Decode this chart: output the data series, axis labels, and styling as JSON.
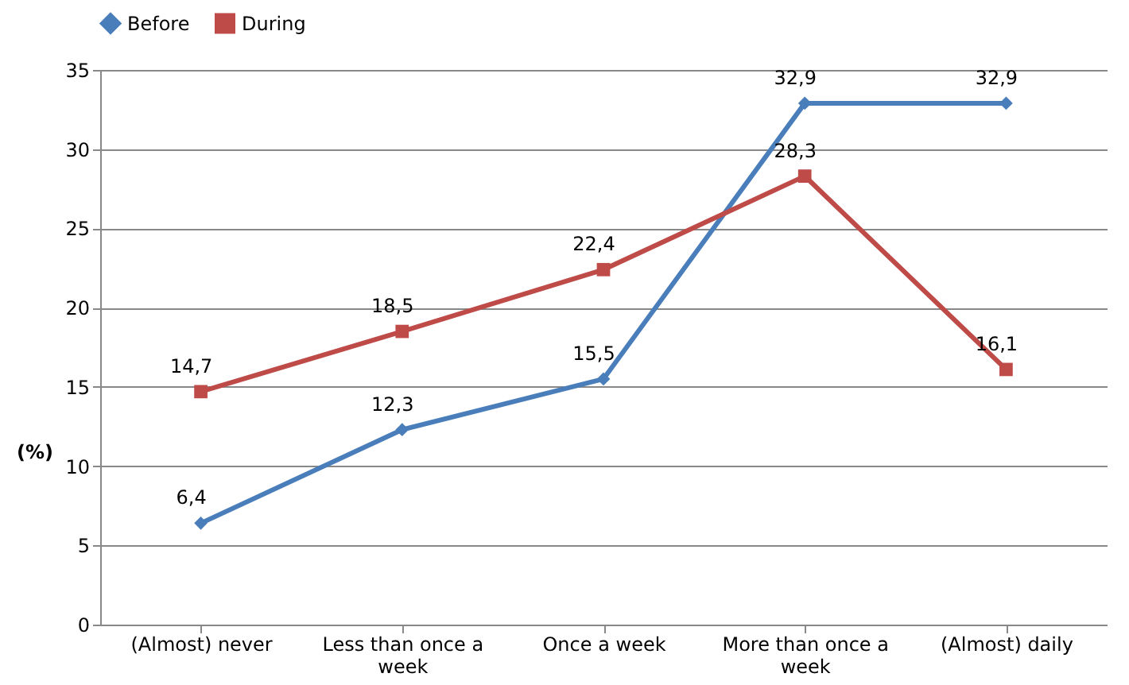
{
  "chart_data": {
    "type": "line",
    "ylabel": "(%)",
    "categories": [
      "(Almost) never",
      "Less than once a week",
      "Once a week",
      "More than once a week",
      "(Almost) daily"
    ],
    "series": [
      {
        "name": "Before",
        "color": "#4a7ebb",
        "marker": "diamond",
        "values": [
          6.4,
          12.3,
          15.5,
          32.9,
          32.9
        ],
        "value_labels": [
          "6,4",
          "12,3",
          "15,5",
          "32,9",
          "32,9"
        ]
      },
      {
        "name": "During",
        "color": "#be4b48",
        "marker": "square",
        "values": [
          14.7,
          18.5,
          22.4,
          28.3,
          16.1
        ],
        "value_labels": [
          "14,7",
          "18,5",
          "22,4",
          "28,3",
          "16,1"
        ]
      }
    ],
    "ylim": [
      0,
      35
    ],
    "yticks": [
      0,
      5,
      10,
      15,
      20,
      25,
      30,
      35
    ],
    "grid": "y",
    "legend": "top"
  }
}
